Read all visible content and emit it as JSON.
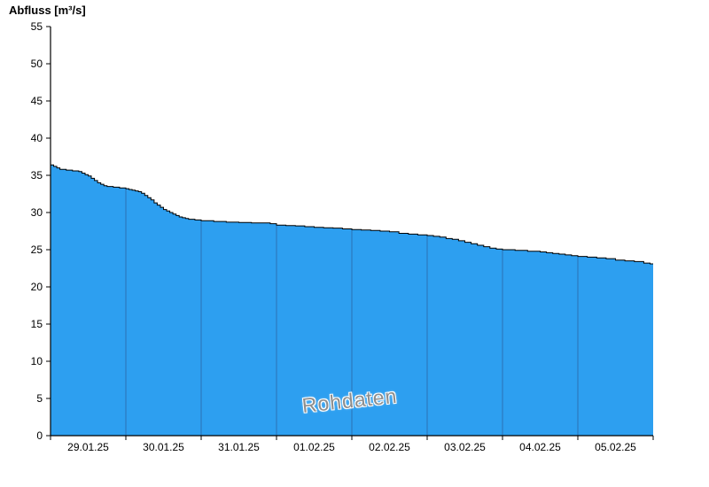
{
  "chart_data": {
    "type": "area",
    "title": "Abfluss [m³/s]",
    "watermark": "Rohdaten",
    "xlabel": "",
    "ylabel": "Abfluss [m³/s]",
    "ylim": [
      0,
      55
    ],
    "y_ticks": [
      0,
      5,
      10,
      15,
      20,
      25,
      30,
      35,
      40,
      45,
      50,
      55
    ],
    "x_range_hours": [
      0,
      192
    ],
    "x_tick_labels": [
      "29.01.25",
      "30.01.25",
      "31.01.25",
      "01.02.25",
      "02.02.25",
      "03.02.25",
      "04.02.25",
      "05.02.25"
    ],
    "day_boundaries_hours": [
      24,
      48,
      72,
      96,
      120,
      144,
      168
    ],
    "grid": "off",
    "legend": "none",
    "series": [
      {
        "name": "Abfluss Rohdaten",
        "interpolation": "step-after",
        "points": [
          [
            0,
            36.4
          ],
          [
            1,
            36.2
          ],
          [
            2,
            36.0
          ],
          [
            3,
            35.8
          ],
          [
            5,
            35.7
          ],
          [
            7,
            35.6
          ],
          [
            9,
            35.5
          ],
          [
            10,
            35.3
          ],
          [
            11,
            35.1
          ],
          [
            12,
            34.9
          ],
          [
            13,
            34.6
          ],
          [
            14,
            34.3
          ],
          [
            15,
            34.0
          ],
          [
            16,
            33.8
          ],
          [
            17,
            33.6
          ],
          [
            18,
            33.5
          ],
          [
            20,
            33.4
          ],
          [
            22,
            33.3
          ],
          [
            24,
            33.2
          ],
          [
            25,
            33.1
          ],
          [
            26,
            33.0
          ],
          [
            27,
            32.9
          ],
          [
            28,
            32.8
          ],
          [
            29,
            32.6
          ],
          [
            30,
            32.3
          ],
          [
            31,
            32.0
          ],
          [
            32,
            31.7
          ],
          [
            33,
            31.3
          ],
          [
            34,
            31.0
          ],
          [
            35,
            30.7
          ],
          [
            36,
            30.4
          ],
          [
            37,
            30.2
          ],
          [
            38,
            30.0
          ],
          [
            39,
            29.8
          ],
          [
            40,
            29.6
          ],
          [
            41,
            29.4
          ],
          [
            42,
            29.3
          ],
          [
            43,
            29.2
          ],
          [
            44,
            29.1
          ],
          [
            46,
            29.0
          ],
          [
            48,
            28.9
          ],
          [
            52,
            28.8
          ],
          [
            56,
            28.7
          ],
          [
            60,
            28.65
          ],
          [
            64,
            28.6
          ],
          [
            68,
            28.6
          ],
          [
            70,
            28.5
          ],
          [
            72,
            28.3
          ],
          [
            75,
            28.25
          ],
          [
            78,
            28.2
          ],
          [
            81,
            28.1
          ],
          [
            84,
            28.0
          ],
          [
            87,
            27.95
          ],
          [
            90,
            27.9
          ],
          [
            93,
            27.8
          ],
          [
            96,
            27.7
          ],
          [
            99,
            27.65
          ],
          [
            102,
            27.6
          ],
          [
            105,
            27.5
          ],
          [
            108,
            27.4
          ],
          [
            111,
            27.2
          ],
          [
            114,
            27.1
          ],
          [
            117,
            27.0
          ],
          [
            120,
            26.9
          ],
          [
            122,
            26.8
          ],
          [
            124,
            26.7
          ],
          [
            126,
            26.5
          ],
          [
            128,
            26.4
          ],
          [
            130,
            26.2
          ],
          [
            132,
            26.0
          ],
          [
            134,
            25.8
          ],
          [
            136,
            25.6
          ],
          [
            138,
            25.4
          ],
          [
            140,
            25.2
          ],
          [
            142,
            25.1
          ],
          [
            144,
            25.0
          ],
          [
            148,
            24.9
          ],
          [
            152,
            24.8
          ],
          [
            156,
            24.7
          ],
          [
            158,
            24.6
          ],
          [
            160,
            24.5
          ],
          [
            162,
            24.4
          ],
          [
            164,
            24.3
          ],
          [
            166,
            24.2
          ],
          [
            168,
            24.1
          ],
          [
            171,
            24.0
          ],
          [
            174,
            23.9
          ],
          [
            177,
            23.8
          ],
          [
            180,
            23.6
          ],
          [
            183,
            23.5
          ],
          [
            186,
            23.4
          ],
          [
            189,
            23.2
          ],
          [
            191,
            23.1
          ]
        ]
      }
    ],
    "colors": {
      "area_fill": "#2D9FF0",
      "area_outline": "#000000",
      "day_separator": "#2A72B5",
      "axis": "#000000",
      "tick_label": "#000000",
      "watermark_color": "#8D8D8D",
      "background": "#FFFFFF"
    }
  }
}
